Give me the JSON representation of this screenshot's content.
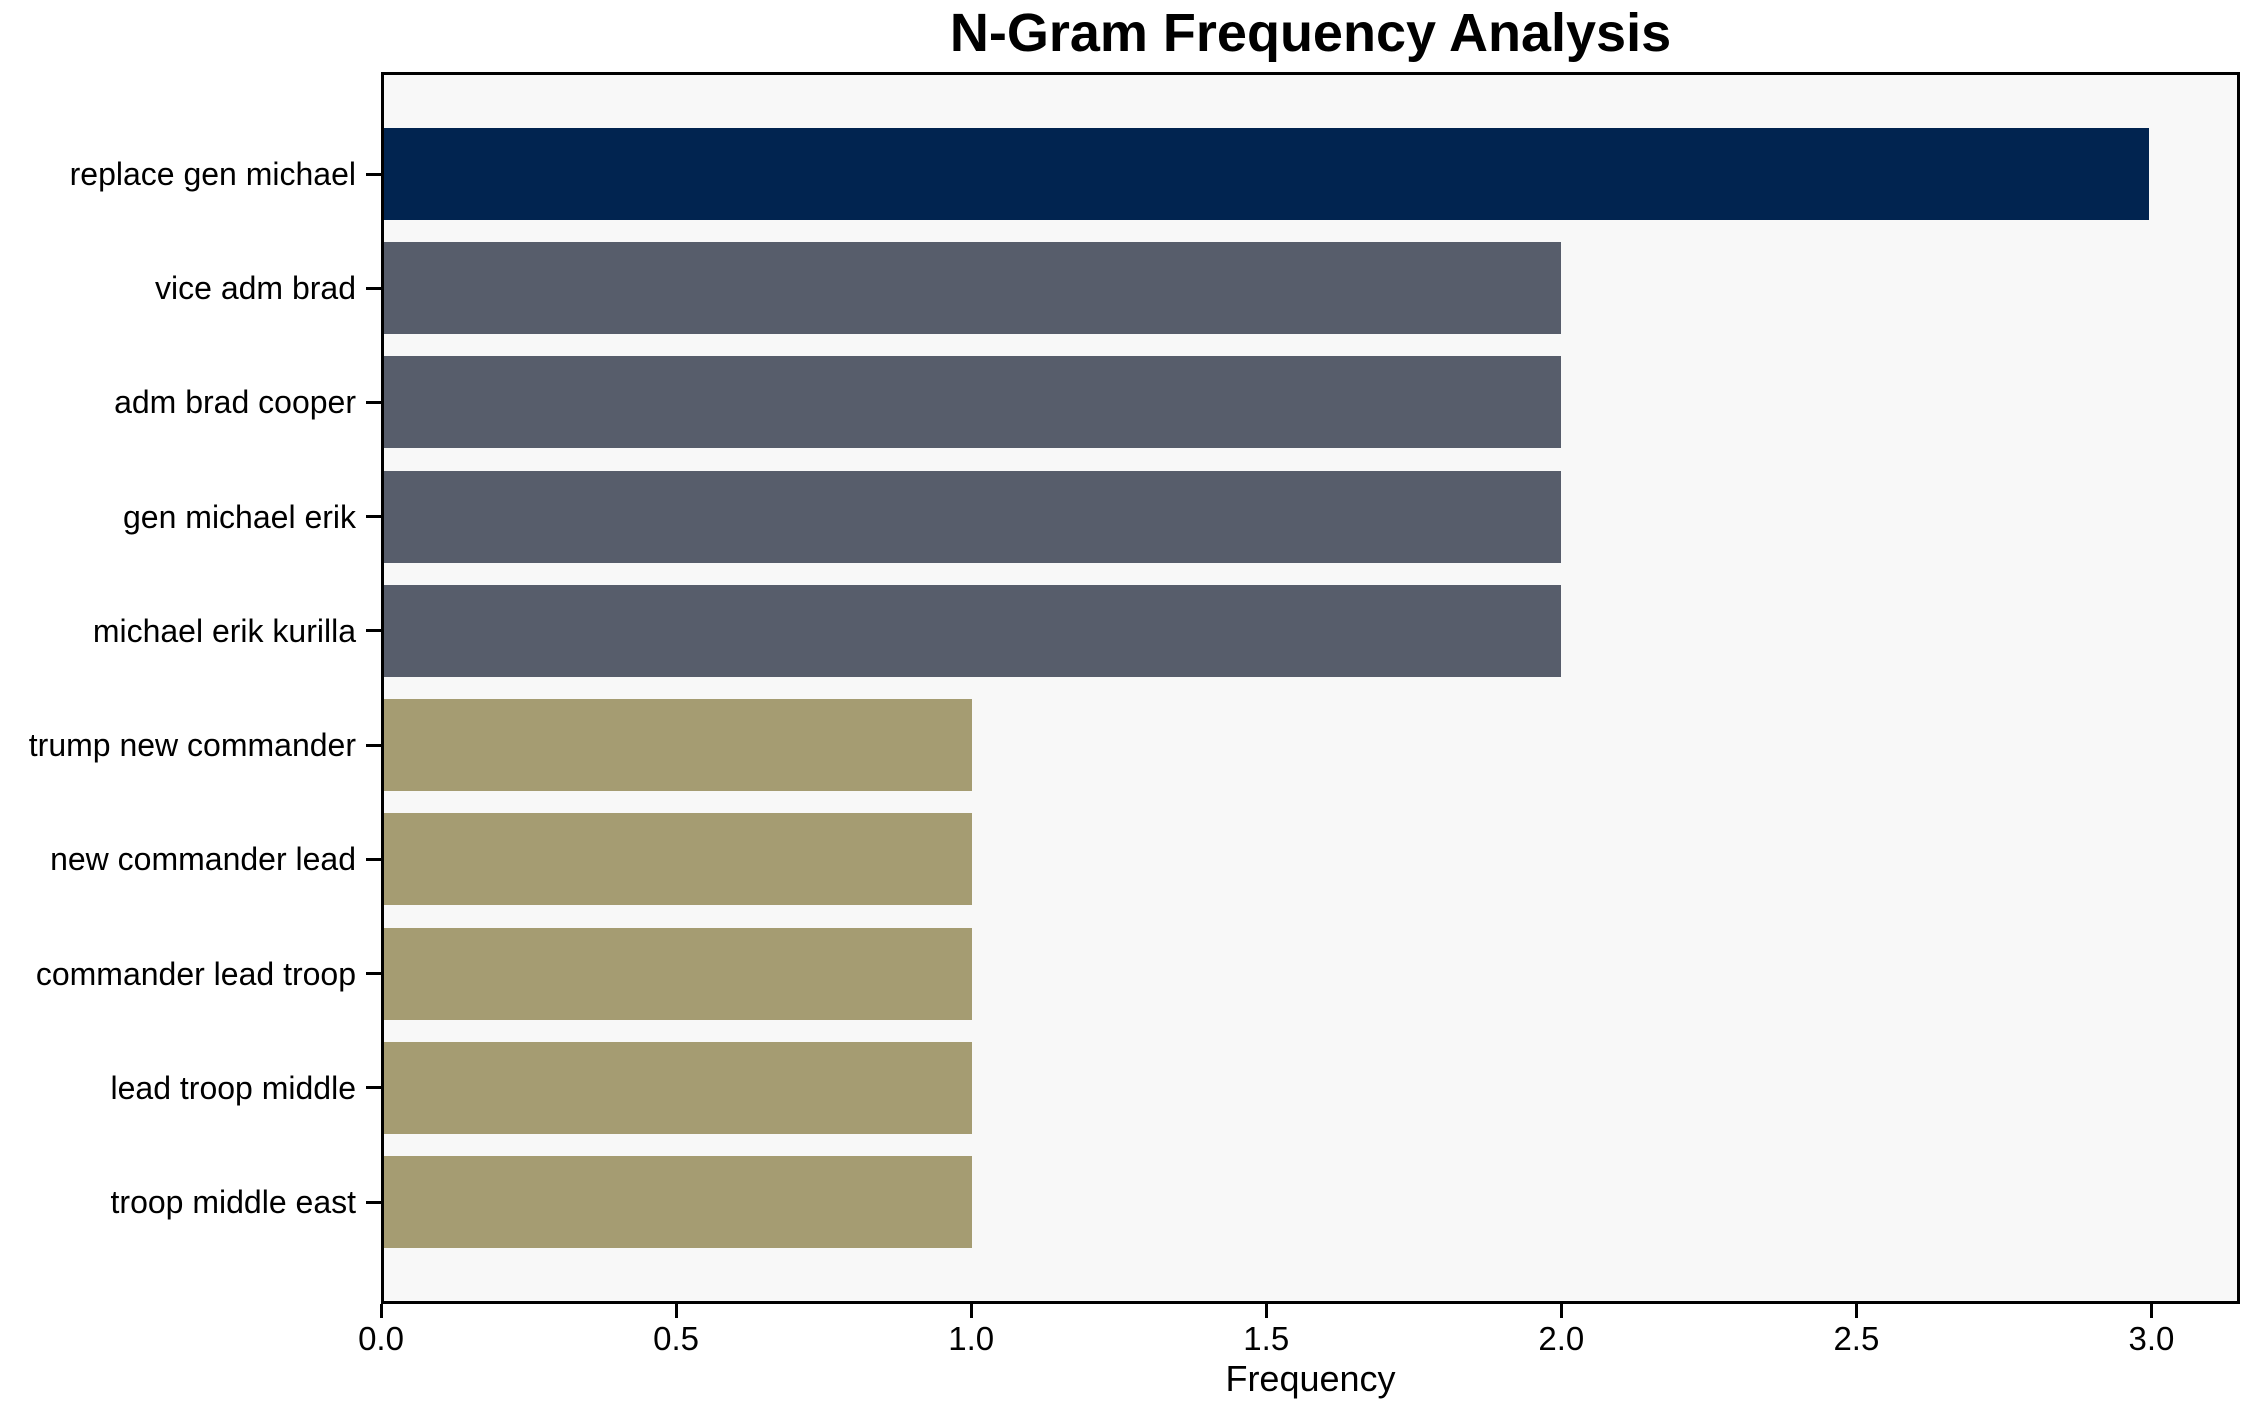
{
  "chart_data": {
    "type": "bar",
    "orientation": "horizontal",
    "title": "N-Gram Frequency Analysis",
    "xlabel": "Frequency",
    "ylabel": "",
    "categories": [
      "replace gen michael",
      "vice adm brad",
      "adm brad cooper",
      "gen michael erik",
      "michael erik kurilla",
      "trump new commander",
      "new commander lead",
      "commander lead troop",
      "lead troop middle",
      "troop middle east"
    ],
    "values": [
      3,
      2,
      2,
      2,
      2,
      1,
      1,
      1,
      1,
      1
    ],
    "bar_colors": [
      "#012450",
      "#575d6b",
      "#575d6b",
      "#575d6b",
      "#575d6b",
      "#a59c72",
      "#a59c72",
      "#a59c72",
      "#a59c72",
      "#a59c72"
    ],
    "xticks": [
      {
        "value": 0.0,
        "label": "0.0"
      },
      {
        "value": 0.5,
        "label": "0.5"
      },
      {
        "value": 1.0,
        "label": "1.0"
      },
      {
        "value": 1.5,
        "label": "1.5"
      },
      {
        "value": 2.0,
        "label": "2.0"
      },
      {
        "value": 2.5,
        "label": "2.5"
      },
      {
        "value": 3.0,
        "label": "3.0"
      }
    ],
    "xlim": [
      0,
      3.15
    ],
    "grid": false,
    "legend": null,
    "plot_background": "#f8f8f8",
    "figure_background": "#ffffff",
    "axis_color": "#000000",
    "text_color": "#000000"
  }
}
